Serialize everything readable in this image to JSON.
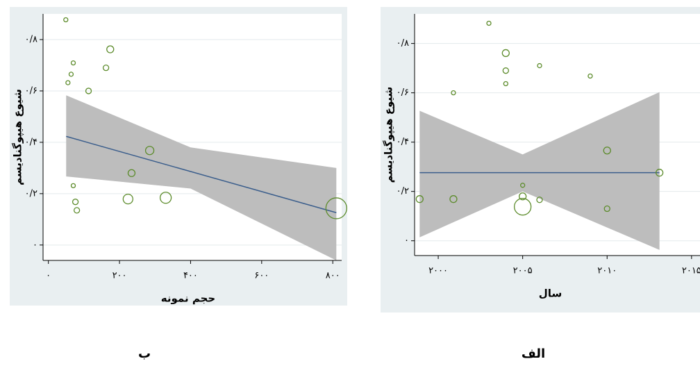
{
  "chart_data": [
    {
      "type": "scatter",
      "caption": "ب",
      "x_label": "حجم نمونه",
      "y_label": "شیوع هیپوگنادیسم",
      "x": [
        49,
        70,
        64,
        55,
        174,
        162,
        113,
        285,
        234,
        70,
        76,
        80,
        224,
        330,
        810
      ],
      "values": [
        0.877,
        0.709,
        0.665,
        0.632,
        0.762,
        0.69,
        0.6,
        0.368,
        0.28,
        0.231,
        0.168,
        0.135,
        0.179,
        0.184,
        0.143
      ],
      "sizes": [
        3,
        3,
        3,
        3,
        5,
        4,
        4,
        6,
        5,
        3,
        4,
        4,
        7,
        8,
        15
      ],
      "color": "#5d8c2c",
      "fit": {
        "x": [
          50,
          810
        ],
        "values": [
          0.423,
          0.126
        ],
        "color": "#3b5e8c"
      },
      "ci": {
        "x": [
          50,
          400,
          810
        ],
        "lower": [
          0.267,
          0.22,
          -0.06
        ],
        "upper": [
          0.583,
          0.38,
          0.3
        ],
        "color": "#bdbdbd"
      },
      "xlim": [
        -15,
        825
      ],
      "ylim": [
        -0.06,
        0.9
      ],
      "xticks": [
        {
          "value": 0,
          "label": "۰"
        },
        {
          "value": 200,
          "label": "۲۰۰"
        },
        {
          "value": 400,
          "label": "۴۰۰"
        },
        {
          "value": 600,
          "label": "۶۰۰"
        },
        {
          "value": 800,
          "label": "۸۰۰"
        }
      ],
      "yticks": [
        {
          "value": 0,
          "label": "۰"
        },
        {
          "value": 0.2,
          "label": "۰/۲"
        },
        {
          "value": 0.4,
          "label": "۰/۴"
        },
        {
          "value": 0.6,
          "label": "۰/۶"
        },
        {
          "value": 0.8,
          "label": "۰/۸"
        }
      ],
      "grid": true
    },
    {
      "type": "scatter",
      "caption": "الف",
      "x_label": "سال",
      "y_label": "شیوع هیپوگنادیسم",
      "x": [
        1998.9,
        2000.9,
        2000.9,
        2003.0,
        2004.0,
        2004.0,
        2004.0,
        2006.0,
        2009.0,
        2010.0,
        2005.0,
        2005.0,
        2005.0,
        2006.0,
        2010.0,
        2013.1
      ],
      "values": [
        0.169,
        0.169,
        0.6,
        0.882,
        0.761,
        0.69,
        0.637,
        0.71,
        0.668,
        0.366,
        0.225,
        0.18,
        0.138,
        0.166,
        0.13,
        0.276
      ],
      "sizes": [
        5,
        5,
        3,
        3,
        5,
        4,
        3,
        3,
        3,
        5,
        3,
        5,
        12,
        4,
        4,
        5
      ],
      "color": "#5d8c2c",
      "fit": {
        "x": [
          1998.9,
          2013.1
        ],
        "values": [
          0.276,
          0.276
        ],
        "color": "#3b5e8c"
      },
      "ci": {
        "x": [
          1998.9,
          2005,
          2013.1
        ],
        "lower": [
          0.014,
          0.2,
          -0.037
        ],
        "upper": [
          0.527,
          0.35,
          0.603
        ],
        "color": "#bdbdbd"
      },
      "xlim": [
        1998.6,
        2015.5
      ],
      "ylim": [
        -0.06,
        0.92
      ],
      "xticks": [
        {
          "value": 2000,
          "label": "۲۰۰۰"
        },
        {
          "value": 2005,
          "label": "۲۰۰۵"
        },
        {
          "value": 2010,
          "label": "۲۰۱۰"
        },
        {
          "value": 2015,
          "label": "۲۰۱۵"
        }
      ],
      "yticks": [
        {
          "value": 0,
          "label": "۰"
        },
        {
          "value": 0.2,
          "label": "۰/۲"
        },
        {
          "value": 0.4,
          "label": "۰/۴"
        },
        {
          "value": 0.6,
          "label": "۰/۶"
        },
        {
          "value": 0.8,
          "label": "۰/۸"
        }
      ],
      "grid": true
    }
  ]
}
